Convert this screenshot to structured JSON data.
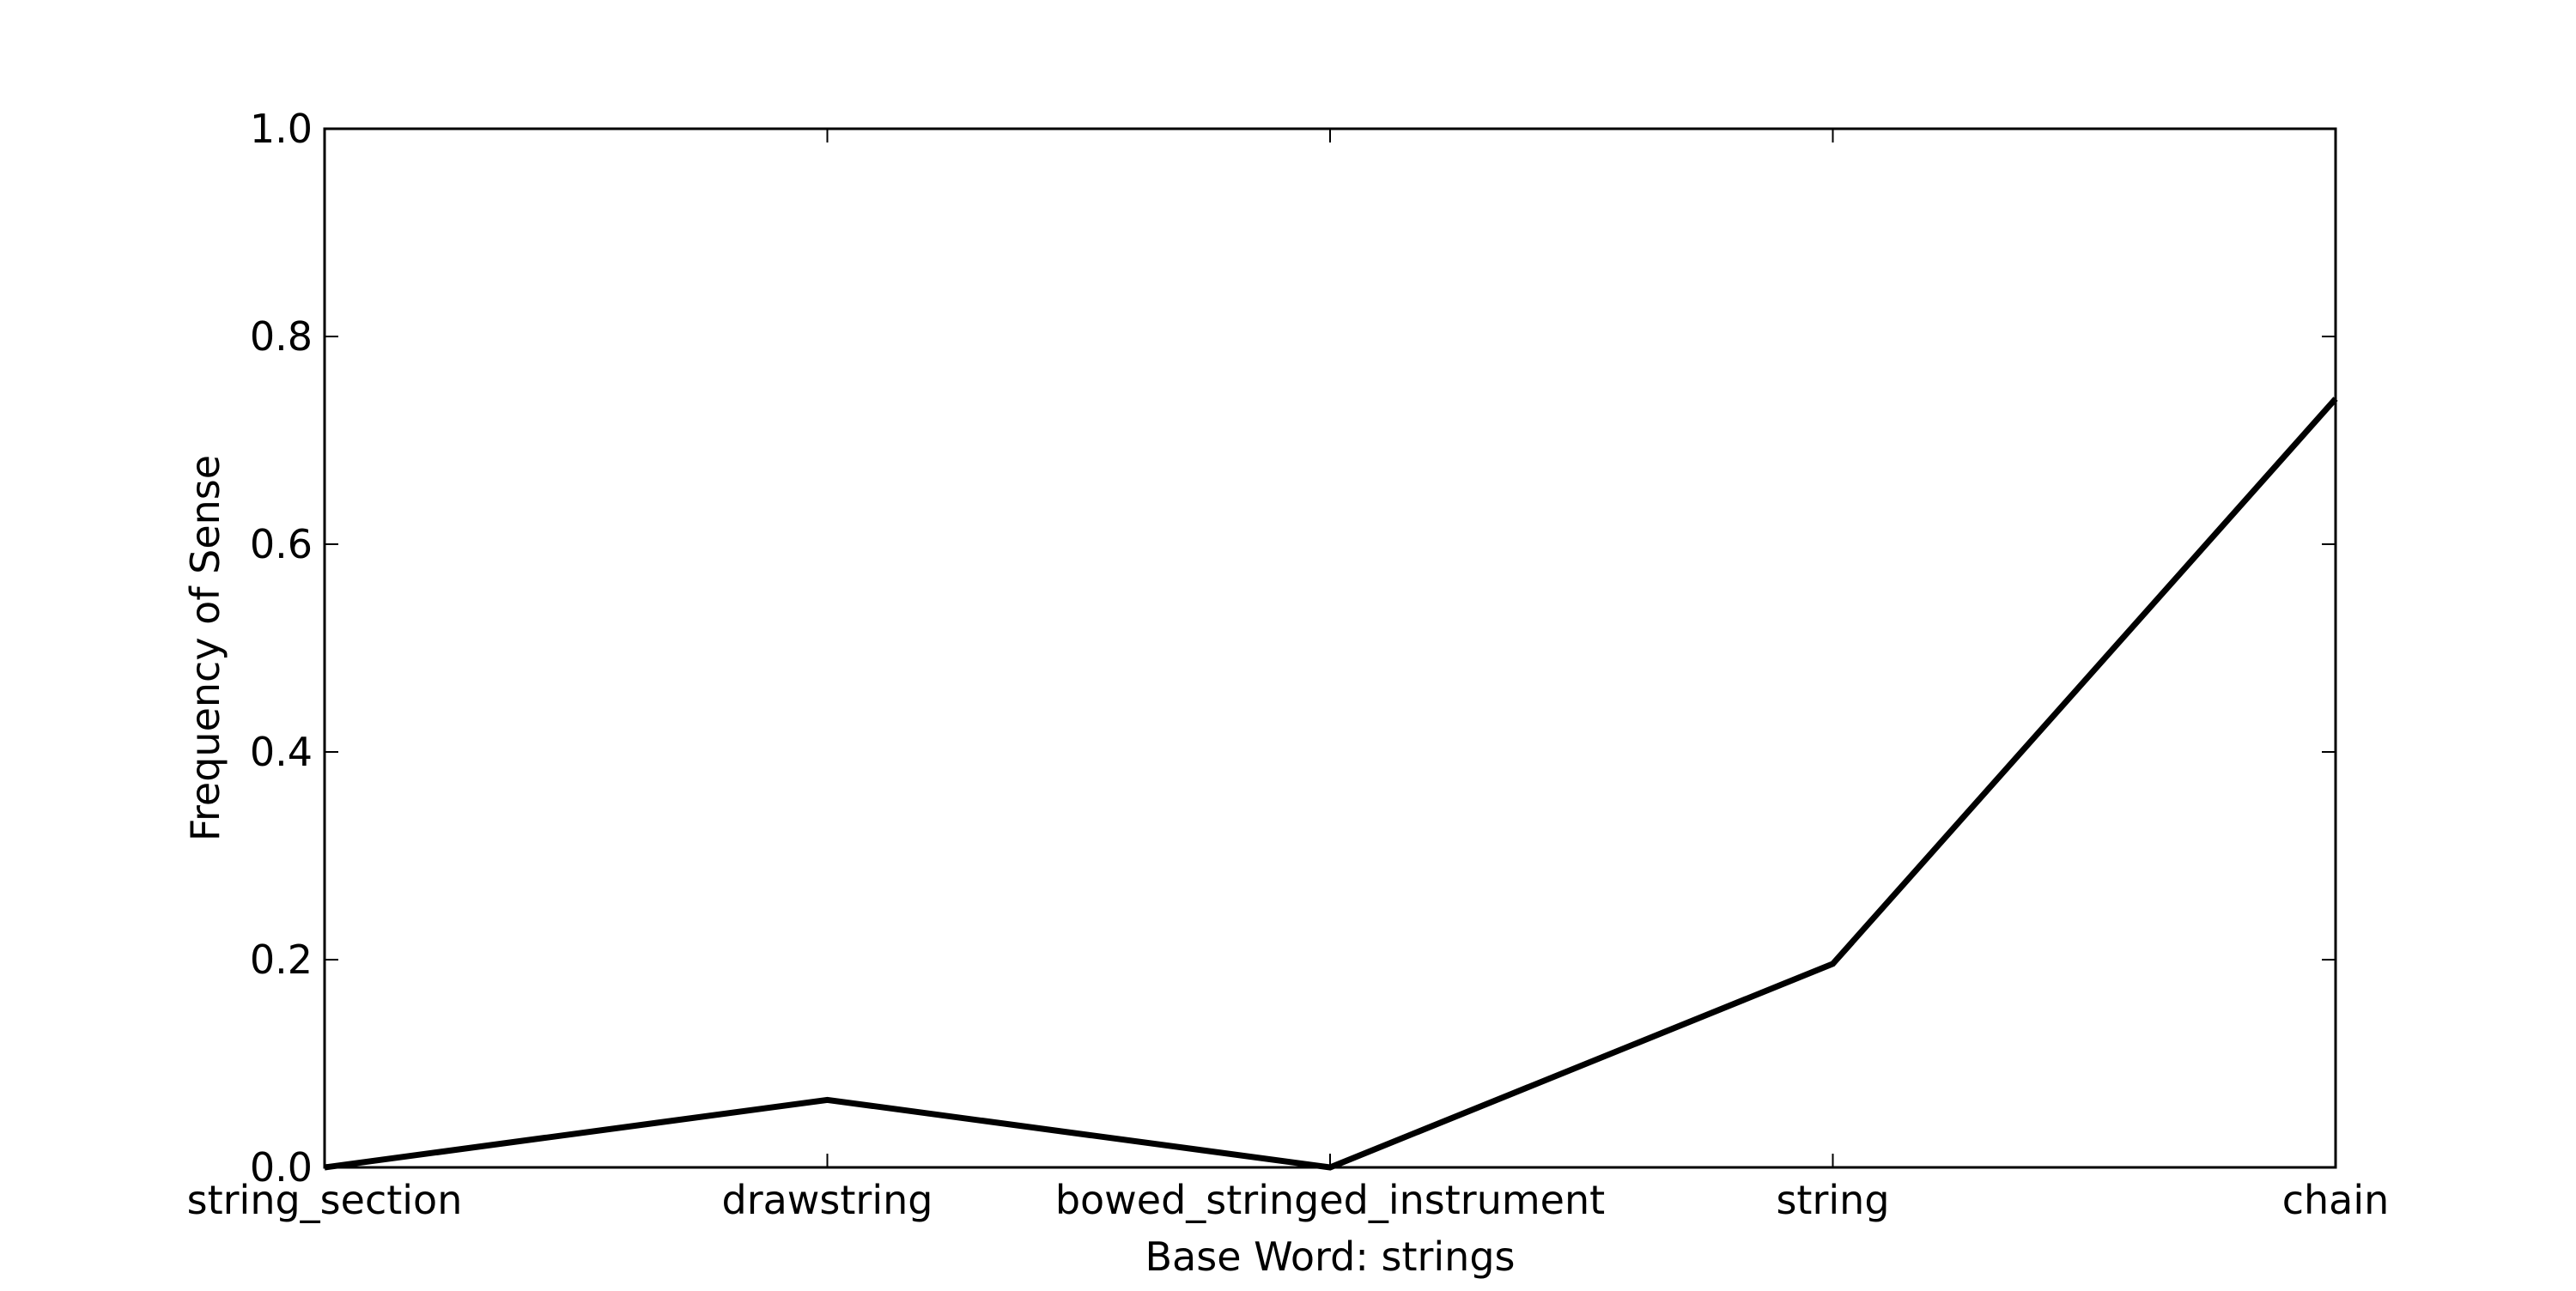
{
  "chart_data": {
    "type": "line",
    "categories": [
      "string_section",
      "drawstring",
      "bowed_stringed_instrument",
      "string",
      "chain"
    ],
    "series": [
      {
        "values": [
          0.0,
          0.065,
          0.0,
          0.196,
          0.74
        ]
      }
    ],
    "xlabel": "Base Word: strings",
    "ylabel": "Frequency of Sense",
    "ylim": [
      0.0,
      1.0
    ],
    "yticks": [
      "0.0",
      "0.2",
      "0.4",
      "0.6",
      "0.8",
      "1.0"
    ],
    "grid": false,
    "line_color": "#000000"
  }
}
